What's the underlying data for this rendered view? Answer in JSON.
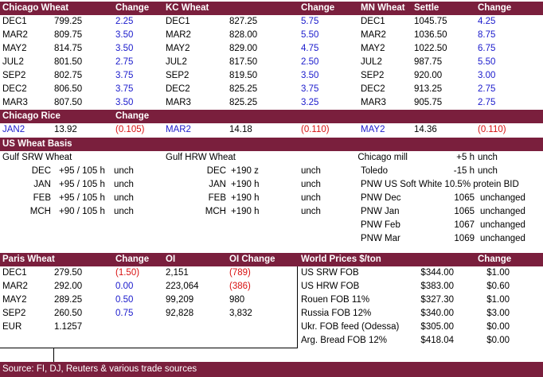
{
  "grains": {
    "header": {
      "chicago": "Chicago Wheat",
      "chicago_change": "Change",
      "kc": "KC Wheat",
      "kc_change": "Change",
      "mn": "MN Wheat",
      "mn_settle": "Settle",
      "mn_change": "Change"
    },
    "rows": [
      {
        "cm": "DEC1",
        "cp": "799.25",
        "cc": "2.25",
        "km": "DEC1",
        "kp": "827.25",
        "kc": "5.75",
        "mm": "DEC1",
        "mp": "1045.75",
        "mc": "4.25"
      },
      {
        "cm": "MAR2",
        "cp": "809.75",
        "cc": "3.50",
        "km": "MAR2",
        "kp": "828.00",
        "kc": "5.50",
        "mm": "MAR2",
        "mp": "1036.50",
        "mc": "8.75"
      },
      {
        "cm": "MAY2",
        "cp": "814.75",
        "cc": "3.50",
        "km": "MAY2",
        "kp": "829.00",
        "kc": "4.75",
        "mm": "MAY2",
        "mp": "1022.50",
        "mc": "6.75"
      },
      {
        "cm": "JUL2",
        "cp": "801.50",
        "cc": "2.75",
        "km": "JUL2",
        "kp": "817.50",
        "kc": "2.50",
        "mm": "JUL2",
        "mp": "987.75",
        "mc": "5.50"
      },
      {
        "cm": "SEP2",
        "cp": "802.75",
        "cc": "3.75",
        "km": "SEP2",
        "kp": "819.50",
        "kc": "3.50",
        "mm": "SEP2",
        "mp": "920.00",
        "mc": "3.00"
      },
      {
        "cm": "DEC2",
        "cp": "806.50",
        "cc": "3.75",
        "km": "DEC2",
        "kp": "825.25",
        "kc": "3.75",
        "mm": "DEC2",
        "mp": "913.25",
        "mc": "2.75"
      },
      {
        "cm": "MAR3",
        "cp": "807.50",
        "cc": "3.50",
        "km": "MAR3",
        "kp": "825.25",
        "kc": "3.25",
        "mm": "MAR3",
        "mp": "905.75",
        "mc": "2.75"
      }
    ]
  },
  "rice": {
    "title": "Chicago Rice",
    "change": "Change",
    "items": [
      {
        "month": "JAN2",
        "price": "13.92",
        "change": "(0.105)"
      },
      {
        "month": "MAR2",
        "price": "14.18",
        "change": "(0.110)"
      },
      {
        "month": "MAY2",
        "price": "14.36",
        "change": "(0.110)"
      }
    ]
  },
  "basis": {
    "title": "US Wheat Basis",
    "gulf_srw_title": "Gulf SRW Wheat",
    "gulf_hrw_title": "Gulf HRW Wheat",
    "srw": [
      {
        "month": "DEC",
        "value": "+95 / 105 h",
        "status": "unch"
      },
      {
        "month": "JAN",
        "value": "+95 / 105 h",
        "status": "unch"
      },
      {
        "month": "FEB",
        "value": "+95 / 105 h",
        "status": "unch"
      },
      {
        "month": "MCH",
        "value": "+90 / 105 h",
        "status": "unch"
      }
    ],
    "hrw": [
      {
        "month": "DEC",
        "value": "+190 z",
        "status": "unch"
      },
      {
        "month": "JAN",
        "value": "+190 h",
        "status": "unch"
      },
      {
        "month": "FEB",
        "value": "+190 h",
        "status": "unch"
      },
      {
        "month": "MCH",
        "value": "+190 h",
        "status": "unch"
      }
    ],
    "chicago_mill": {
      "label": "Chicago mill",
      "value": "+5 h",
      "status": "unch"
    },
    "toledo": {
      "label": "Toledo",
      "value": "-15 h",
      "status": "unch"
    },
    "pnw_title": "PNW US Soft White 10.5% protein BID",
    "pnw": [
      {
        "label": "PNW Dec",
        "value": "1065",
        "status": "unchanged"
      },
      {
        "label": "PNW Jan",
        "value": "1065",
        "status": "unchanged"
      },
      {
        "label": "PNW Feb",
        "value": "1067",
        "status": "unchanged"
      },
      {
        "label": "PNW Mar",
        "value": "1069",
        "status": "unchanged"
      }
    ]
  },
  "paris": {
    "header": {
      "title": "Paris Wheat",
      "change": "Change",
      "oi": "OI",
      "oi_change": "OI Change"
    },
    "rows": [
      {
        "month": "DEC1",
        "price": "279.50",
        "change": "(1.50)",
        "oi": "2,151",
        "oi_change": "(789)"
      },
      {
        "month": "MAR2",
        "price": "292.00",
        "change": "0.00",
        "oi": "223,064",
        "oi_change": "(386)"
      },
      {
        "month": "MAY2",
        "price": "289.25",
        "change": "0.50",
        "oi": "99,209",
        "oi_change": "980"
      },
      {
        "month": "SEP2",
        "price": "260.50",
        "change": "0.75",
        "oi": "92,828",
        "oi_change": "3,832"
      }
    ],
    "eur": {
      "label": "EUR",
      "value": "1.1257"
    }
  },
  "world": {
    "header": {
      "title": "World Prices $/ton",
      "change": "Change"
    },
    "rows": [
      {
        "label": "US SRW FOB",
        "price": "$344.00",
        "change": "$1.00"
      },
      {
        "label": "US HRW FOB",
        "price": "$383.00",
        "change": "$0.60"
      },
      {
        "label": "Rouen FOB 11%",
        "price": "$327.30",
        "change": "$1.00"
      },
      {
        "label": "Russia FOB 12%",
        "price": "$340.00",
        "change": "$3.00"
      },
      {
        "label": "Ukr. FOB feed (Odessa)",
        "price": "$305.00",
        "change": "$0.00"
      },
      {
        "label": "Arg. Bread FOB 12%",
        "price": "$418.04",
        "change": "$0.00"
      }
    ]
  },
  "footer": {
    "source": "Source: FI, DJ, Reuters & various trade sources"
  },
  "colors": {
    "header_bar": "#7a1f3d",
    "positive": "#1a1acc",
    "negative": "#d81010"
  }
}
